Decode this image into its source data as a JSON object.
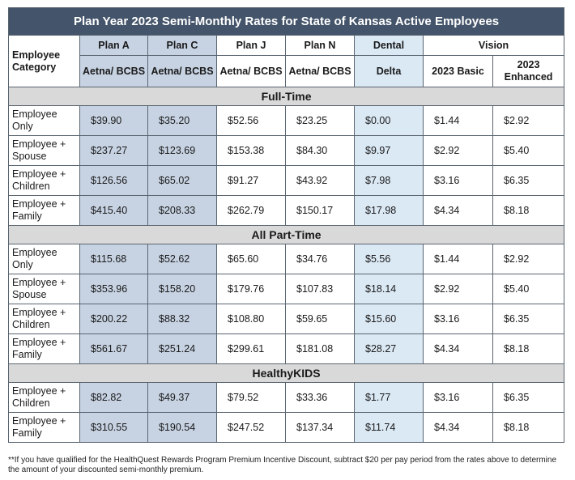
{
  "title": "Plan Year 2023 Semi-Monthly Rates for State of Kansas Active Employees",
  "headers": {
    "category": "Employee Category",
    "plans": [
      {
        "name": "Plan A",
        "carrier": "Aetna/ BCBS"
      },
      {
        "name": "Plan C",
        "carrier": "Aetna/ BCBS"
      },
      {
        "name": "Plan J",
        "carrier": "Aetna/ BCBS"
      },
      {
        "name": "Plan N",
        "carrier": "Aetna/ BCBS"
      }
    ],
    "dental": {
      "name": "Dental",
      "carrier": "Delta"
    },
    "vision": {
      "name": "Vision",
      "basic": "2023 Basic",
      "enhanced": "2023 Enhanced"
    }
  },
  "sections": [
    {
      "name": "Full-Time",
      "rows": [
        {
          "category": "Employee Only",
          "values": [
            "$39.90",
            "$35.20",
            "$52.56",
            "$23.25",
            "$0.00",
            "$1.44",
            "$2.92"
          ]
        },
        {
          "category": "Employee + Spouse",
          "values": [
            "$237.27",
            "$123.69",
            "$153.38",
            "$84.30",
            "$9.97",
            "$2.92",
            "$5.40"
          ]
        },
        {
          "category": "Employee + Children",
          "values": [
            "$126.56",
            "$65.02",
            "$91.27",
            "$43.92",
            "$7.98",
            "$3.16",
            "$6.35"
          ]
        },
        {
          "category": "Employee + Family",
          "values": [
            "$415.40",
            "$208.33",
            "$262.79",
            "$150.17",
            "$17.98",
            "$4.34",
            "$8.18"
          ]
        }
      ]
    },
    {
      "name": "All Part-Time",
      "rows": [
        {
          "category": "Employee Only",
          "values": [
            "$115.68",
            "$52.62",
            "$65.60",
            "$34.76",
            "$5.56",
            "$1.44",
            "$2.92"
          ]
        },
        {
          "category": "Employee + Spouse",
          "values": [
            "$353.96",
            "$158.20",
            "$179.76",
            "$107.83",
            "$18.14",
            "$2.92",
            "$5.40"
          ]
        },
        {
          "category": "Employee + Children",
          "values": [
            "$200.22",
            "$88.32",
            "$108.80",
            "$59.65",
            "$15.60",
            "$3.16",
            "$6.35"
          ]
        },
        {
          "category": "Employee + Family",
          "values": [
            "$561.67",
            "$251.24",
            "$299.61",
            "$181.08",
            "$28.27",
            "$4.34",
            "$8.18"
          ]
        }
      ]
    },
    {
      "name": "HealthyKIDS",
      "rows": [
        {
          "category": "Employee + Children",
          "values": [
            "$82.82",
            "$49.37",
            "$79.52",
            "$33.36",
            "$1.77",
            "$3.16",
            "$6.35"
          ]
        },
        {
          "category": "Employee + Family",
          "values": [
            "$310.55",
            "$190.54",
            "$247.52",
            "$137.34",
            "$11.74",
            "$4.34",
            "$8.18"
          ]
        }
      ]
    }
  ],
  "footnote": "**If you have qualified for the HealthQuest Rewards Program Premium Incentive Discount, subtract $20 per pay period from the rates above to determine the amount of your discounted semi-monthly premium.",
  "colors": {
    "title_bg": "#44546a",
    "plan_shade": "#c7d3e3",
    "dental_shade": "#dbe9f5",
    "section_bg": "#d9d9d9"
  }
}
